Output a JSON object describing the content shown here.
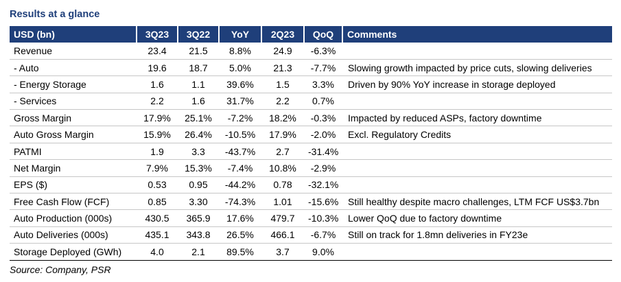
{
  "title": "Results at a glance",
  "header": {
    "label": "USD (bn)",
    "c1": "3Q23",
    "c2": "3Q22",
    "c3": "YoY",
    "c4": "2Q23",
    "c5": "QoQ",
    "c6": "Comments"
  },
  "rows": [
    {
      "label": "Revenue",
      "c1": "23.4",
      "c2": "21.5",
      "c3": "8.8%",
      "c4": "24.9",
      "c5": "-6.3%",
      "comment": ""
    },
    {
      "label": " - Auto",
      "c1": "19.6",
      "c2": "18.7",
      "c3": "5.0%",
      "c4": "21.3",
      "c5": "-7.7%",
      "comment": "Slowing growth impacted by price cuts, slowing deliveries"
    },
    {
      "label": " - Energy Storage",
      "c1": "1.6",
      "c2": "1.1",
      "c3": "39.6%",
      "c4": "1.5",
      "c5": "3.3%",
      "comment": "Driven by 90% YoY increase in storage deployed"
    },
    {
      "label": " - Services",
      "c1": "2.2",
      "c2": "1.6",
      "c3": "31.7%",
      "c4": "2.2",
      "c5": "0.7%",
      "comment": ""
    },
    {
      "label": "Gross Margin",
      "c1": "17.9%",
      "c2": "25.1%",
      "c3": "-7.2%",
      "c4": "18.2%",
      "c5": "-0.3%",
      "comment": "Impacted by reduced ASPs, factory downtime"
    },
    {
      "label": "Auto Gross Margin",
      "c1": "15.9%",
      "c2": "26.4%",
      "c3": "-10.5%",
      "c4": "17.9%",
      "c5": "-2.0%",
      "comment": "Excl. Regulatory Credits"
    },
    {
      "label": "PATMI",
      "c1": "1.9",
      "c2": "3.3",
      "c3": "-43.7%",
      "c4": "2.7",
      "c5": "-31.4%",
      "comment": ""
    },
    {
      "label": "Net Margin",
      "c1": "7.9%",
      "c2": "15.3%",
      "c3": "-7.4%",
      "c4": "10.8%",
      "c5": "-2.9%",
      "comment": ""
    },
    {
      "label": "EPS ($)",
      "c1": "0.53",
      "c2": "0.95",
      "c3": "-44.2%",
      "c4": "0.78",
      "c5": "-32.1%",
      "comment": ""
    },
    {
      "label": "Free Cash Flow (FCF)",
      "c1": "0.85",
      "c2": "3.30",
      "c3": "-74.3%",
      "c4": "1.01",
      "c5": "-15.6%",
      "comment": "Still healthy despite macro challenges, LTM FCF US$3.7bn"
    },
    {
      "label": "Auto Production (000s)",
      "c1": "430.5",
      "c2": "365.9",
      "c3": "17.6%",
      "c4": "479.7",
      "c5": "-10.3%",
      "comment": "Lower QoQ due to factory downtime"
    },
    {
      "label": "Auto Deliveries (000s)",
      "c1": "435.1",
      "c2": "343.8",
      "c3": "26.5%",
      "c4": "466.1",
      "c5": "-6.7%",
      "comment": "Still on track for 1.8mn deliveries in FY23e"
    },
    {
      "label": "Storage Deployed (GWh)",
      "c1": "4.0",
      "c2": "2.1",
      "c3": "89.5%",
      "c4": "3.7",
      "c5": "9.0%",
      "comment": ""
    }
  ],
  "source": "Source: Company, PSR",
  "colors": {
    "header_bg": "#1f3f7a",
    "title_text": "#1f3f7a"
  }
}
